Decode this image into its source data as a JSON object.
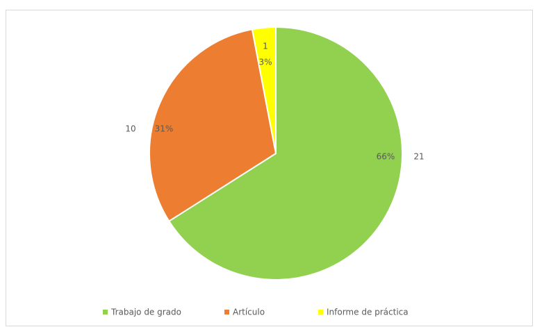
{
  "chart_data": {
    "type": "pie",
    "categories": [
      "Trabajo de grado",
      "Artículo",
      "Informe de práctica"
    ],
    "values": [
      66,
      31,
      3
    ],
    "value_labels": [
      "66%",
      "31%",
      "3%"
    ],
    "counts": [
      21,
      10,
      1
    ],
    "colors": [
      "#92d050",
      "#ed7d31",
      "#ffff00"
    ],
    "legend": "bottom"
  }
}
